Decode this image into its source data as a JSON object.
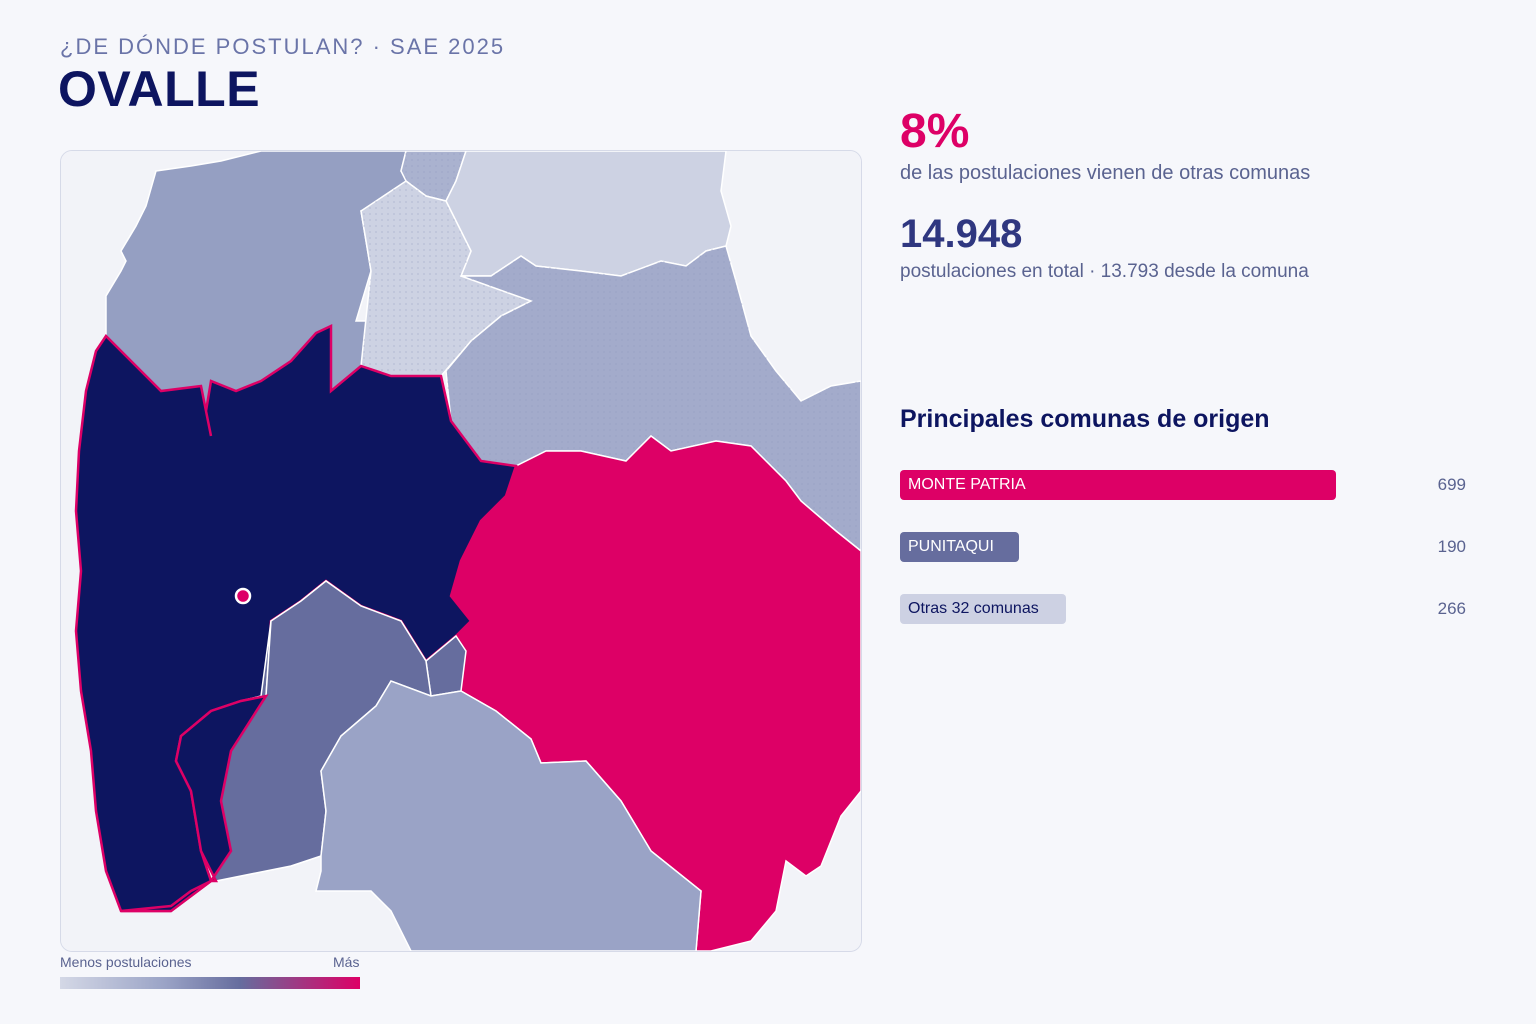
{
  "header": {
    "kicker": "¿DE DÓNDE POSTULAN? · SAE 2025",
    "title": "OVALLE"
  },
  "stats": {
    "external_share": "8%",
    "external_share_desc": "de las postulaciones vienen de otras comunas",
    "total": "14.948",
    "total_desc": "postulaciones en total · 13.793 desde la comuna"
  },
  "origins": {
    "title": "Principales comunas de origen",
    "max_value": 699,
    "items": [
      {
        "label": "MONTE PATRIA",
        "value": 699,
        "value_text": "699",
        "color": "#dd0066",
        "text_color": "#ffffff"
      },
      {
        "label": "PUNITAQUI",
        "value": 190,
        "value_text": "190",
        "color": "#666d9e",
        "text_color": "#ffffff"
      },
      {
        "label": "Otras 32 comunas",
        "value": 266,
        "value_text": "266",
        "color": "#cdd1e3",
        "text_color": "#0d1560"
      }
    ]
  },
  "legend": {
    "low": "Menos postulaciones",
    "high": "Más",
    "colors": [
      "#d4d8e6",
      "#9aa3c6",
      "#666d9e",
      "#dd0066"
    ]
  },
  "map": {
    "home_commune_color": "#0d1560",
    "home_border_color": "#dd0066",
    "regions": [
      {
        "name": "Ovalle",
        "color": "#0d1560"
      },
      {
        "name": "Monte Patria",
        "color": "#dd0066"
      },
      {
        "name": "Punitaqui",
        "color": "#666d9e"
      }
    ]
  }
}
